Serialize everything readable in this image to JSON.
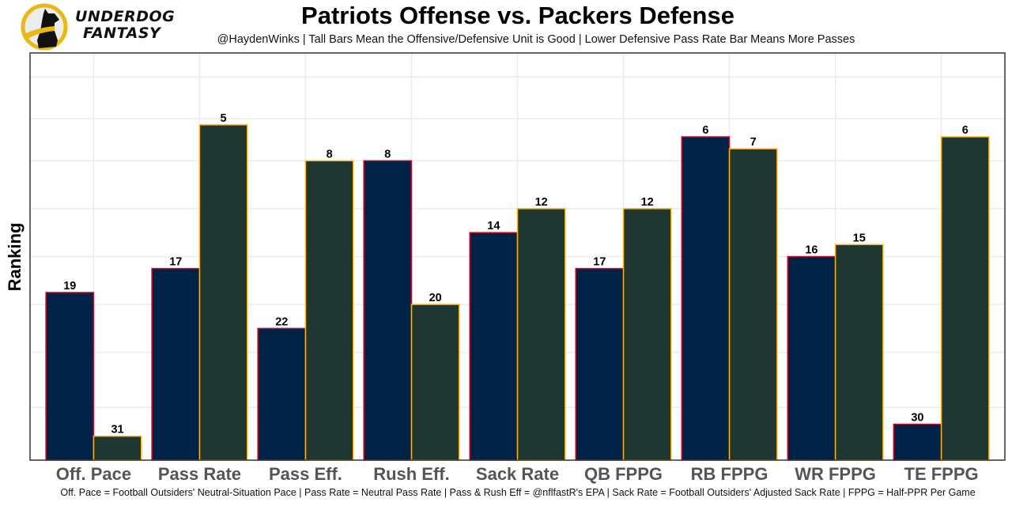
{
  "logo": {
    "name": "underdog-fantasy-logo",
    "line1": "UNDERDOG",
    "line2": "FANTASY"
  },
  "chart_data": {
    "type": "bar",
    "title": "Patriots Offense vs. Packers Defense",
    "subtitle": "@HaydenWinks | Tall Bars Mean the Offensive/Defensive Unit is Good | Lower Defensive Pass Rate Bar Means More Passes",
    "caption": "Off. Pace = Football Outsiders' Neutral-Situation Pace | Pass Rate = Neutral Pass Rate | Pass & Rush Eff = @nflfastR's EPA | Sack Rate = Football Outsiders' Adjusted Sack Rate | FPPG = Half-PPR Per Game",
    "xlabel": "",
    "ylabel": "Ranking",
    "y_scale_note": "bar height = 33 - rank (rank 1 is tallest)",
    "y_bar_value_range": [
      0,
      34
    ],
    "gridlines": true,
    "legend": "none",
    "categories": [
      "Off. Pace",
      "Pass Rate",
      "Pass Eff.",
      "Rush Eff.",
      "Sack Rate",
      "QB FPPG",
      "RB FPPG",
      "WR FPPG",
      "TE FPPG"
    ],
    "series": [
      {
        "name": "Patriots Offense",
        "fill": "#002244",
        "border": "#C60C30",
        "ranks": [
          19,
          17,
          22,
          8,
          14,
          17,
          6,
          16,
          30
        ]
      },
      {
        "name": "Packers Defense",
        "fill": "#203731",
        "border": "#FFB612",
        "ranks": [
          31,
          5,
          8,
          20,
          12,
          12,
          7,
          15,
          6
        ]
      }
    ],
    "horizontal_grid_values": [
      4.4,
      9,
      13,
      17,
      21,
      25,
      28.5,
      32
    ]
  }
}
